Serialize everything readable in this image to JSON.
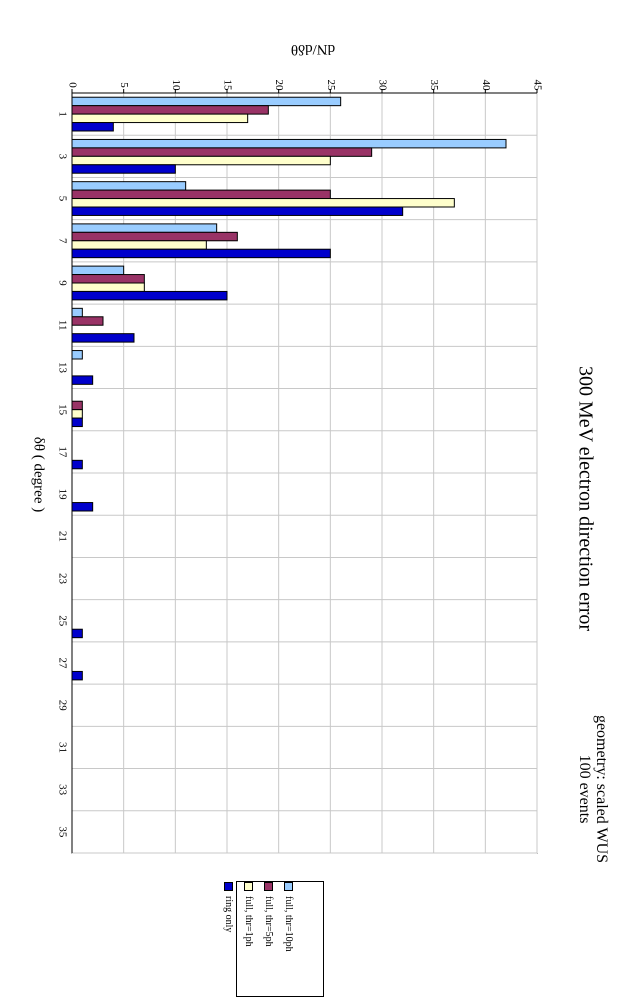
{
  "chart_data": {
    "type": "bar",
    "title": "300 MeV electron direction error",
    "annotation_lines": [
      "geometry: scaled WUS",
      "100 events"
    ],
    "ylabel": "dN/dδθ",
    "xlabel": "δθ ( degree )",
    "ylim": [
      0,
      45
    ],
    "yticks": [
      "0",
      "5",
      "10",
      "15",
      "20",
      "25",
      "30",
      "35",
      "40",
      "45"
    ],
    "categories": [
      "1",
      "3",
      "5",
      "7",
      "9",
      "11",
      "13",
      "15",
      "17",
      "19",
      "21",
      "23",
      "25",
      "27",
      "29",
      "31",
      "33",
      "35"
    ],
    "grid": true,
    "legend_position": "bottom-left",
    "series": [
      {
        "name": "full, thr=10ph",
        "color": "#99ccff",
        "values": [
          26,
          42,
          11,
          14,
          5,
          1,
          1,
          0,
          0,
          0,
          0,
          0,
          0,
          0,
          0,
          0,
          0,
          0
        ]
      },
      {
        "name": "full, thr=5ph",
        "color": "#993366",
        "values": [
          19,
          29,
          25,
          16,
          7,
          3,
          0,
          1,
          0,
          0,
          0,
          0,
          0,
          0,
          0,
          0,
          0,
          0
        ]
      },
      {
        "name": "full, thr=1ph",
        "color": "#ffffcc",
        "values": [
          17,
          25,
          37,
          13,
          7,
          0,
          0,
          1,
          0,
          0,
          0,
          0,
          0,
          0,
          0,
          0,
          0,
          0
        ]
      },
      {
        "name": "ring only",
        "color": "#0000cc",
        "values": [
          4,
          10,
          32,
          25,
          15,
          6,
          2,
          1,
          1,
          2,
          0,
          0,
          1,
          1,
          0,
          0,
          0,
          0
        ]
      }
    ]
  }
}
